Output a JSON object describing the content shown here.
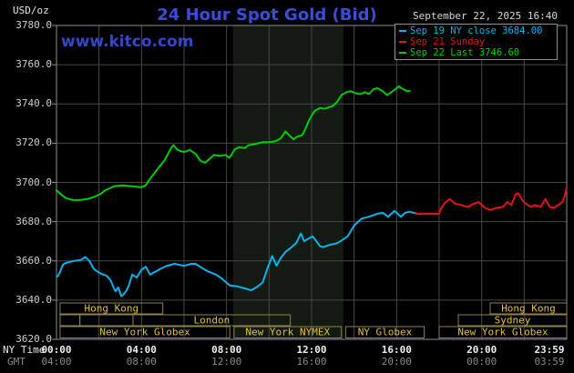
{
  "header": {
    "unit": "USD/oz",
    "title": "24 Hour Spot Gold (Bid)",
    "datetime": "September 22, 2025 16:40",
    "watermark": "www.kitco.com"
  },
  "legend": {
    "items": [
      {
        "color": "#00b4f0",
        "text": "Sep 19 NY close 3684.00"
      },
      {
        "color": "#e51212",
        "text": "Sep 21 Sunday"
      },
      {
        "color": "#00cc00",
        "text": "Sep 22 Last 3746.60"
      }
    ]
  },
  "axes": {
    "ny_label": "NY Time",
    "gmt_label": "GMT",
    "tick_hours": [
      0,
      4,
      8,
      12,
      16,
      20,
      24
    ],
    "ny_ticks": [
      "00:00",
      "04:00",
      "08:00",
      "12:00",
      "16:00",
      "20:00",
      "23:59"
    ],
    "gmt_ticks": [
      "04:00",
      "08:00",
      "12:00",
      "16:00",
      "20:00",
      "00:00",
      "03:59"
    ],
    "ytick_labels": [
      "3780.0",
      "3760.0",
      "3740.0",
      "3720.0",
      "3700.0",
      "3680.0",
      "3660.0",
      "3640.0",
      "3620.0"
    ],
    "ytick_values": [
      3780,
      3760,
      3740,
      3720,
      3700,
      3680,
      3660,
      3640,
      3620
    ]
  },
  "chart_data": {
    "type": "line",
    "title": "24 Hour Spot Gold (Bid)",
    "ylabel": "USD/oz",
    "ylim": [
      3620,
      3780
    ],
    "xlim_hours": [
      0,
      24
    ],
    "grid": true,
    "grid_color": "#474747",
    "border_color": "#8c8c8c",
    "band": {
      "start_hour": 8.3,
      "end_hour": 13.5,
      "color": "#121a12"
    },
    "session_style": {
      "border_color": "#8f8148",
      "text_color": "#e2c23a"
    },
    "series": [
      {
        "name": "Sep 19 NY close",
        "color": "#00b4f0",
        "close": 3684.0,
        "points": [
          [
            0.05,
            3652
          ],
          [
            0.15,
            3654
          ],
          [
            0.3,
            3658
          ],
          [
            0.45,
            3659
          ],
          [
            0.65,
            3659.5
          ],
          [
            0.85,
            3660
          ],
          [
            1.15,
            3660.5
          ],
          [
            1.35,
            3662
          ],
          [
            1.55,
            3660
          ],
          [
            1.75,
            3656
          ],
          [
            2.0,
            3654
          ],
          [
            2.2,
            3653
          ],
          [
            2.35,
            3652.5
          ],
          [
            2.55,
            3650
          ],
          [
            2.7,
            3646
          ],
          [
            2.78,
            3644.5
          ],
          [
            2.9,
            3646.5
          ],
          [
            3.05,
            3642
          ],
          [
            3.2,
            3643.5
          ],
          [
            3.3,
            3645
          ],
          [
            3.42,
            3648
          ],
          [
            3.56,
            3653
          ],
          [
            3.77,
            3651.5
          ],
          [
            4.0,
            3655.5
          ],
          [
            4.2,
            3657
          ],
          [
            4.4,
            3653
          ],
          [
            4.65,
            3654.5
          ],
          [
            4.9,
            3656
          ],
          [
            5.2,
            3657.5
          ],
          [
            5.55,
            3658.5
          ],
          [
            6.0,
            3657.5
          ],
          [
            6.35,
            3658.5
          ],
          [
            6.55,
            3658.5
          ],
          [
            6.9,
            3656
          ],
          [
            7.15,
            3654.5
          ],
          [
            7.5,
            3653
          ],
          [
            7.78,
            3651
          ],
          [
            8.15,
            3647.5
          ],
          [
            8.5,
            3647
          ],
          [
            8.85,
            3646
          ],
          [
            9.15,
            3645
          ],
          [
            9.4,
            3646.5
          ],
          [
            9.7,
            3649
          ],
          [
            9.9,
            3655.5
          ],
          [
            10.15,
            3662.5
          ],
          [
            10.35,
            3657.5
          ],
          [
            10.55,
            3661.5
          ],
          [
            10.77,
            3664.5
          ],
          [
            11.0,
            3666.5
          ],
          [
            11.27,
            3669
          ],
          [
            11.5,
            3674
          ],
          [
            11.65,
            3670
          ],
          [
            11.8,
            3671
          ],
          [
            12.05,
            3672.5
          ],
          [
            12.4,
            3667.5
          ],
          [
            12.55,
            3667
          ],
          [
            12.8,
            3668
          ],
          [
            13.0,
            3668.5
          ],
          [
            13.2,
            3669
          ],
          [
            13.35,
            3670
          ],
          [
            13.7,
            3672.5
          ],
          [
            14.0,
            3678
          ],
          [
            14.35,
            3681.5
          ],
          [
            14.7,
            3682.5
          ],
          [
            15.1,
            3684
          ],
          [
            15.35,
            3684.5
          ],
          [
            15.6,
            3682.5
          ],
          [
            15.9,
            3685.5
          ],
          [
            16.2,
            3682.5
          ],
          [
            16.4,
            3684.5
          ],
          [
            16.6,
            3685
          ],
          [
            17.0,
            3684
          ]
        ]
      },
      {
        "name": "Sep 21 Sunday",
        "color": "#e51212",
        "points": [
          [
            16.9,
            3684
          ],
          [
            17.5,
            3684
          ],
          [
            18.0,
            3684
          ],
          [
            18.1,
            3687
          ],
          [
            18.3,
            3690
          ],
          [
            18.5,
            3691.5
          ],
          [
            18.77,
            3689
          ],
          [
            19.05,
            3688.5
          ],
          [
            19.35,
            3687.5
          ],
          [
            19.6,
            3689
          ],
          [
            19.85,
            3690
          ],
          [
            20.15,
            3687
          ],
          [
            20.4,
            3686
          ],
          [
            20.7,
            3687
          ],
          [
            21.0,
            3687.5
          ],
          [
            21.2,
            3690
          ],
          [
            21.4,
            3688.5
          ],
          [
            21.6,
            3694
          ],
          [
            21.72,
            3694.5
          ],
          [
            21.9,
            3691
          ],
          [
            22.1,
            3689
          ],
          [
            22.3,
            3687.5
          ],
          [
            22.5,
            3688.5
          ],
          [
            22.77,
            3687.5
          ],
          [
            23.0,
            3691.5
          ],
          [
            23.2,
            3687.5
          ],
          [
            23.4,
            3687
          ],
          [
            23.6,
            3688.5
          ],
          [
            23.8,
            3690
          ],
          [
            23.9,
            3693
          ],
          [
            23.99,
            3697
          ]
        ]
      },
      {
        "name": "Sep 22 Last",
        "color": "#00cc00",
        "last": 3746.6,
        "points": [
          [
            0.0,
            3696
          ],
          [
            0.2,
            3694
          ],
          [
            0.45,
            3692
          ],
          [
            0.77,
            3691
          ],
          [
            1.1,
            3691
          ],
          [
            1.45,
            3691.5
          ],
          [
            1.75,
            3692.5
          ],
          [
            2.06,
            3694
          ],
          [
            2.3,
            3696
          ],
          [
            2.7,
            3698
          ],
          [
            3.1,
            3698.5
          ],
          [
            3.56,
            3698
          ],
          [
            3.99,
            3697.5
          ],
          [
            4.2,
            3698.5
          ],
          [
            4.41,
            3702
          ],
          [
            4.63,
            3705
          ],
          [
            4.84,
            3708
          ],
          [
            5.1,
            3711.5
          ],
          [
            5.36,
            3717
          ],
          [
            5.5,
            3719
          ],
          [
            5.7,
            3716.5
          ],
          [
            5.99,
            3715.5
          ],
          [
            6.27,
            3716.5
          ],
          [
            6.55,
            3714.5
          ],
          [
            6.77,
            3711
          ],
          [
            7.0,
            3710
          ],
          [
            7.2,
            3712
          ],
          [
            7.41,
            3714
          ],
          [
            7.7,
            3713.5
          ],
          [
            7.95,
            3714
          ],
          [
            8.13,
            3712.5
          ],
          [
            8.4,
            3717
          ],
          [
            8.6,
            3718
          ],
          [
            8.85,
            3717.5
          ],
          [
            9.05,
            3719
          ],
          [
            9.3,
            3719.5
          ],
          [
            9.5,
            3720
          ],
          [
            9.7,
            3720.5
          ],
          [
            10.0,
            3720.5
          ],
          [
            10.3,
            3721
          ],
          [
            10.55,
            3722.5
          ],
          [
            10.77,
            3726
          ],
          [
            10.95,
            3724
          ],
          [
            11.15,
            3722
          ],
          [
            11.35,
            3723.5
          ],
          [
            11.55,
            3724
          ],
          [
            11.7,
            3727
          ],
          [
            11.85,
            3731
          ],
          [
            12.0,
            3734
          ],
          [
            12.15,
            3736.5
          ],
          [
            12.4,
            3738
          ],
          [
            12.6,
            3737.5
          ],
          [
            13.0,
            3739
          ],
          [
            13.2,
            3741
          ],
          [
            13.4,
            3744.5
          ],
          [
            13.65,
            3746
          ],
          [
            13.85,
            3746.5
          ],
          [
            14.05,
            3745.5
          ],
          [
            14.3,
            3745
          ],
          [
            14.5,
            3746
          ],
          [
            14.7,
            3745
          ],
          [
            14.9,
            3747.5
          ],
          [
            15.1,
            3748
          ],
          [
            15.35,
            3746.5
          ],
          [
            15.55,
            3744.5
          ],
          [
            15.75,
            3746
          ],
          [
            16.0,
            3748
          ],
          [
            16.1,
            3749
          ],
          [
            16.3,
            3747.5
          ],
          [
            16.5,
            3746.5
          ],
          [
            16.62,
            3746.6
          ]
        ]
      }
    ],
    "sessions": [
      {
        "row": 0,
        "start_hour": 0.17,
        "end_hour": 5.0,
        "label": "Hong Kong"
      },
      {
        "row": 0,
        "start_hour": 20.4,
        "end_hour": 24,
        "label": "Hong Kong"
      },
      {
        "row": 1,
        "start_hour": 0.17,
        "end_hour": 1.1,
        "label": ""
      },
      {
        "row": 1,
        "start_hour": 1.1,
        "end_hour": 3.6,
        "label": ""
      },
      {
        "row": 1,
        "start_hour": 3.6,
        "end_hour": 11.0,
        "label": "London"
      },
      {
        "row": 1,
        "start_hour": 18.9,
        "end_hour": 24,
        "label": "Sydney"
      },
      {
        "row": 2,
        "start_hour": 0.17,
        "end_hour": 8.15,
        "label": "New York Globex"
      },
      {
        "row": 2,
        "start_hour": 8.35,
        "end_hour": 13.4,
        "label": "New York NYMEX"
      },
      {
        "row": 2,
        "start_hour": 13.6,
        "end_hour": 17.3,
        "label": "NY Globex"
      },
      {
        "row": 2,
        "start_hour": 18.0,
        "end_hour": 24,
        "label": "New York Globex"
      }
    ]
  }
}
